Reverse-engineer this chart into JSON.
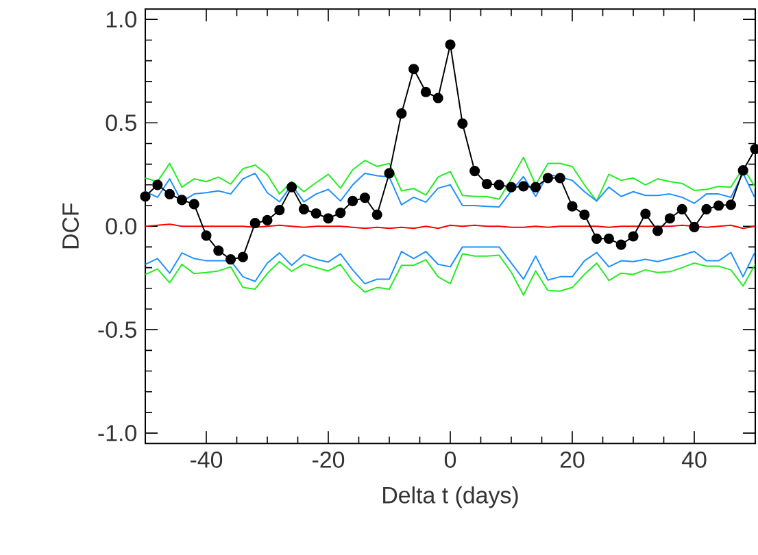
{
  "chart_data": {
    "type": "line",
    "xlabel": "Delta t (days)",
    "ylabel": "DCF",
    "x": [
      -50,
      -48,
      -46,
      -44,
      -42,
      -40,
      -38,
      -36,
      -34,
      -32,
      -30,
      -28,
      -26,
      -24,
      -22,
      -20,
      -18,
      -16,
      -14,
      -12,
      -10,
      -8,
      -6,
      -4,
      -2,
      0,
      2,
      4,
      6,
      8,
      10,
      12,
      14,
      16,
      18,
      20,
      22,
      24,
      26,
      28,
      30,
      32,
      34,
      36,
      38,
      40,
      42,
      44,
      46,
      48,
      50
    ],
    "xlim": [
      -50,
      50
    ],
    "ylim": [
      -1.05,
      1.05
    ],
    "xticks": [
      -40,
      -20,
      0,
      20,
      40
    ],
    "yticks": [
      {
        "value": -1.0,
        "label": "-1.0"
      },
      {
        "value": -0.5,
        "label": "-0.5"
      },
      {
        "value": 0.0,
        "label": "0.0"
      },
      {
        "value": 0.5,
        "label": "0.5"
      },
      {
        "value": 1.0,
        "label": "1.0"
      }
    ],
    "series": [
      {
        "color": "#22ee22",
        "marker": "none",
        "values": [
          0.233,
          0.216,
          0.304,
          0.189,
          0.229,
          0.216,
          0.238,
          0.204,
          0.278,
          0.296,
          0.249,
          0.156,
          0.216,
          0.167,
          0.211,
          0.251,
          0.184,
          0.273,
          0.318,
          0.289,
          0.304,
          0.171,
          0.182,
          0.151,
          0.238,
          0.264,
          0.149,
          0.144,
          0.144,
          0.131,
          0.229,
          0.333,
          0.2,
          0.304,
          0.304,
          0.289,
          0.2,
          0.122,
          0.251,
          0.222,
          0.233,
          0.2,
          0.229,
          0.216,
          0.207,
          0.173,
          0.178,
          0.193,
          0.189,
          0.282,
          0.189
        ]
      },
      {
        "color": "#22ee22",
        "marker": "none",
        "values": [
          -0.233,
          -0.207,
          -0.273,
          -0.184,
          -0.229,
          -0.224,
          -0.216,
          -0.196,
          -0.296,
          -0.304,
          -0.229,
          -0.171,
          -0.218,
          -0.182,
          -0.2,
          -0.216,
          -0.184,
          -0.267,
          -0.318,
          -0.296,
          -0.304,
          -0.189,
          -0.189,
          -0.162,
          -0.244,
          -0.278,
          -0.133,
          -0.144,
          -0.144,
          -0.14,
          -0.222,
          -0.333,
          -0.216,
          -0.311,
          -0.313,
          -0.296,
          -0.233,
          -0.178,
          -0.262,
          -0.227,
          -0.233,
          -0.211,
          -0.224,
          -0.22,
          -0.2,
          -0.178,
          -0.193,
          -0.193,
          -0.211,
          -0.289,
          -0.184
        ]
      },
      {
        "color": "#1e90ff",
        "marker": "none",
        "values": [
          0.167,
          0.14,
          0.229,
          0.118,
          0.156,
          0.162,
          0.171,
          0.156,
          0.229,
          0.256,
          0.162,
          0.118,
          0.2,
          0.118,
          0.156,
          0.178,
          0.122,
          0.2,
          0.256,
          0.244,
          0.238,
          0.104,
          0.14,
          0.116,
          0.184,
          0.2,
          0.1,
          0.1,
          0.096,
          0.093,
          0.171,
          0.24,
          0.144,
          0.251,
          0.238,
          0.222,
          0.167,
          0.122,
          0.189,
          0.144,
          0.167,
          0.149,
          0.149,
          0.156,
          0.14,
          0.111,
          0.156,
          0.156,
          0.14,
          0.256,
          0.133
        ]
      },
      {
        "color": "#1e90ff",
        "marker": "none",
        "values": [
          -0.184,
          -0.156,
          -0.227,
          -0.129,
          -0.156,
          -0.167,
          -0.167,
          -0.167,
          -0.244,
          -0.267,
          -0.178,
          -0.129,
          -0.189,
          -0.138,
          -0.16,
          -0.173,
          -0.133,
          -0.211,
          -0.278,
          -0.256,
          -0.256,
          -0.122,
          -0.156,
          -0.122,
          -0.184,
          -0.196,
          -0.1,
          -0.1,
          -0.1,
          -0.1,
          -0.178,
          -0.256,
          -0.144,
          -0.26,
          -0.244,
          -0.244,
          -0.167,
          -0.127,
          -0.196,
          -0.167,
          -0.171,
          -0.16,
          -0.171,
          -0.156,
          -0.14,
          -0.122,
          -0.167,
          -0.167,
          -0.127,
          -0.244,
          -0.122
        ]
      },
      {
        "color": "#ff0000",
        "marker": "none",
        "values": [
          0.0,
          0.005,
          0.01,
          0.0,
          0.0,
          0.0,
          0.0,
          0.0,
          0.0,
          -0.005,
          0.0,
          0.005,
          0.0,
          -0.005,
          0.0,
          0.0,
          0.0,
          -0.005,
          -0.01,
          -0.005,
          -0.01,
          -0.005,
          -0.01,
          0.0,
          -0.01,
          0.005,
          0.0,
          0.005,
          0.0,
          0.0,
          -0.005,
          -0.005,
          0.0,
          -0.005,
          0.0,
          0.0,
          0.0,
          0.0,
          -0.005,
          0.0,
          0.0,
          0.0,
          0.0,
          0.0,
          0.005,
          0.0,
          -0.005,
          0.0,
          0.005,
          -0.01,
          0.0
        ]
      },
      {
        "color": "#000000",
        "marker": "circle",
        "values": [
          0.144,
          0.2,
          0.155,
          0.127,
          0.107,
          -0.045,
          -0.118,
          -0.16,
          -0.149,
          0.015,
          0.029,
          0.078,
          0.189,
          0.082,
          0.062,
          0.038,
          0.065,
          0.122,
          0.138,
          0.056,
          0.256,
          0.545,
          0.76,
          0.649,
          0.62,
          0.878,
          0.496,
          0.267,
          0.204,
          0.2,
          0.189,
          0.193,
          0.189,
          0.233,
          0.233,
          0.096,
          0.056,
          -0.06,
          -0.06,
          -0.089,
          -0.049,
          0.06,
          -0.022,
          0.038,
          0.082,
          -0.004,
          0.082,
          0.1,
          0.104,
          0.27,
          0.373
        ]
      }
    ]
  }
}
